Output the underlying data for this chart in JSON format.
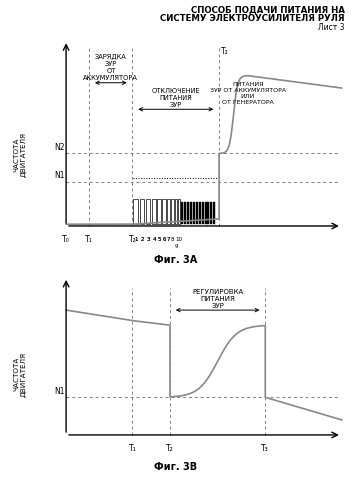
{
  "title_line1": "СПОСОБ ПОДАЧИ ПИТАНИЯ НА",
  "title_line2": "СИСТЕМУ ЭЛЕКТРОУСИЛИТЕЛЯ РУЛЯ",
  "title_line3": "Лист 3",
  "fig_a_label": "Фиг. 3А",
  "fig_b_label": "Фиг. 3В",
  "ylabel_a": "ЧАСТОТА\nДВИГАТЕЛЯ",
  "ylabel_b": "ЧАСТОТА\nДВИГАТЕЛЯ",
  "n1_label": "N1",
  "n2_label": "N2",
  "annotation_a1": "ЗАРЯДКА\nЗУР\nОТ\nАККУМУЛЯТОРА",
  "annotation_a2": "ОТКЛЮЧЕНИЕ\nПИТАНИЯ\nЗУР",
  "annotation_a3": "ПИТАНИЯ\nЗУР ОТ АККУМУЛЯТОРА\nИЛИ\nОТ ГЕНЕРАТОРА",
  "annotation_b1": "РЕГУЛИРОВКА\nПИТАНИЯ\nЗУР",
  "bg_color": "#ffffff",
  "gray": "#888888",
  "black": "#000000"
}
